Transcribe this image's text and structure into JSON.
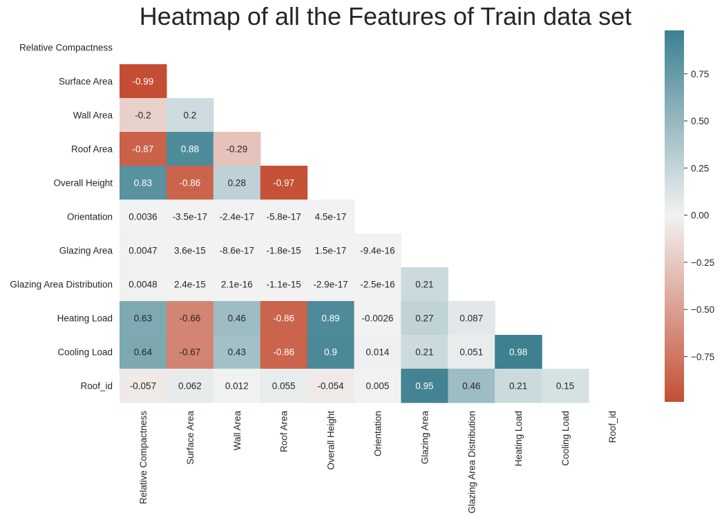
{
  "chart_data": {
    "type": "heatmap",
    "title": "Heatmap of all the Features of Train data set",
    "mask": "upper-triangle-including-diagonal",
    "rows": [
      "Relative Compactness",
      "Surface Area",
      "Wall Area",
      "Roof Area",
      "Overall Height",
      "Orientation",
      "Glazing Area",
      "Glazing Area Distribution",
      "Heating Load",
      "Cooling Load",
      "Roof_id"
    ],
    "columns": [
      "Relative Compactness",
      "Surface Area",
      "Wall Area",
      "Roof Area",
      "Overall Height",
      "Orientation",
      "Glazing Area",
      "Glazing Area Distribution",
      "Heating Load",
      "Cooling Load",
      "Roof_id"
    ],
    "cells": [
      [
        null,
        null,
        null,
        null,
        null,
        null,
        null,
        null,
        null,
        null,
        null
      ],
      [
        {
          "v": -0.99,
          "t": "-0.99"
        },
        null,
        null,
        null,
        null,
        null,
        null,
        null,
        null,
        null,
        null
      ],
      [
        {
          "v": -0.2,
          "t": "-0.2"
        },
        {
          "v": 0.2,
          "t": "0.2"
        },
        null,
        null,
        null,
        null,
        null,
        null,
        null,
        null,
        null
      ],
      [
        {
          "v": -0.87,
          "t": "-0.87"
        },
        {
          "v": 0.88,
          "t": "0.88"
        },
        {
          "v": -0.29,
          "t": "-0.29"
        },
        null,
        null,
        null,
        null,
        null,
        null,
        null,
        null
      ],
      [
        {
          "v": 0.83,
          "t": "0.83"
        },
        {
          "v": -0.86,
          "t": "-0.86"
        },
        {
          "v": 0.28,
          "t": "0.28"
        },
        {
          "v": -0.97,
          "t": "-0.97"
        },
        null,
        null,
        null,
        null,
        null,
        null,
        null
      ],
      [
        {
          "v": 0.0036,
          "t": "0.0036"
        },
        {
          "v": -3.5e-17,
          "t": "-3.5e-17"
        },
        {
          "v": -2.4e-17,
          "t": "-2.4e-17"
        },
        {
          "v": -5.8e-17,
          "t": "-5.8e-17"
        },
        {
          "v": 4.5e-17,
          "t": "4.5e-17"
        },
        null,
        null,
        null,
        null,
        null,
        null
      ],
      [
        {
          "v": 0.0047,
          "t": "0.0047"
        },
        {
          "v": 3.6e-15,
          "t": "3.6e-15"
        },
        {
          "v": -8.6e-17,
          "t": "-8.6e-17"
        },
        {
          "v": -1.8e-15,
          "t": "-1.8e-15"
        },
        {
          "v": 1.5e-17,
          "t": "1.5e-17"
        },
        {
          "v": -9.4e-16,
          "t": "-9.4e-16"
        },
        null,
        null,
        null,
        null,
        null
      ],
      [
        {
          "v": 0.0048,
          "t": "0.0048"
        },
        {
          "v": 2.4e-15,
          "t": "2.4e-15"
        },
        {
          "v": 2.1e-16,
          "t": "2.1e-16"
        },
        {
          "v": -1.1e-15,
          "t": "-1.1e-15"
        },
        {
          "v": -2.9e-17,
          "t": "-2.9e-17"
        },
        {
          "v": -2.5e-16,
          "t": "-2.5e-16"
        },
        {
          "v": 0.21,
          "t": "0.21"
        },
        null,
        null,
        null,
        null
      ],
      [
        {
          "v": 0.63,
          "t": "0.63"
        },
        {
          "v": -0.66,
          "t": "-0.66"
        },
        {
          "v": 0.46,
          "t": "0.46"
        },
        {
          "v": -0.86,
          "t": "-0.86"
        },
        {
          "v": 0.89,
          "t": "0.89"
        },
        {
          "v": -0.0026,
          "t": "-0.0026"
        },
        {
          "v": 0.27,
          "t": "0.27"
        },
        {
          "v": 0.087,
          "t": "0.087"
        },
        null,
        null,
        null
      ],
      [
        {
          "v": 0.64,
          "t": "0.64"
        },
        {
          "v": -0.67,
          "t": "-0.67"
        },
        {
          "v": 0.43,
          "t": "0.43"
        },
        {
          "v": -0.86,
          "t": "-0.86"
        },
        {
          "v": 0.9,
          "t": "0.9"
        },
        {
          "v": 0.014,
          "t": "0.014"
        },
        {
          "v": 0.21,
          "t": "0.21"
        },
        {
          "v": 0.051,
          "t": "0.051"
        },
        {
          "v": 0.98,
          "t": "0.98"
        },
        null,
        null
      ],
      [
        {
          "v": -0.057,
          "t": "-0.057"
        },
        {
          "v": 0.062,
          "t": "0.062"
        },
        {
          "v": 0.012,
          "t": "0.012"
        },
        {
          "v": 0.055,
          "t": "0.055"
        },
        {
          "v": -0.054,
          "t": "-0.054"
        },
        {
          "v": 0.005,
          "t": "0.005"
        },
        {
          "v": 0.95,
          "t": "0.95"
        },
        {
          "v": 0.46,
          "t": "0.46"
        },
        {
          "v": 0.21,
          "t": "0.21"
        },
        {
          "v": 0.15,
          "t": "0.15"
        },
        null
      ]
    ],
    "colorbar": {
      "vmin": -0.99,
      "vmax": 0.98,
      "ticks": [
        0.75,
        0.5,
        0.25,
        0.0,
        -0.25,
        -0.5,
        -0.75
      ],
      "tick_labels": [
        "0.75",
        "0.50",
        "0.25",
        "0.00",
        "−0.25",
        "−0.50",
        "−0.75"
      ]
    },
    "colors": {
      "negative": "#c44e33",
      "neutral": "#f2f2f2",
      "positive": "#3d8090"
    },
    "grid": false
  }
}
